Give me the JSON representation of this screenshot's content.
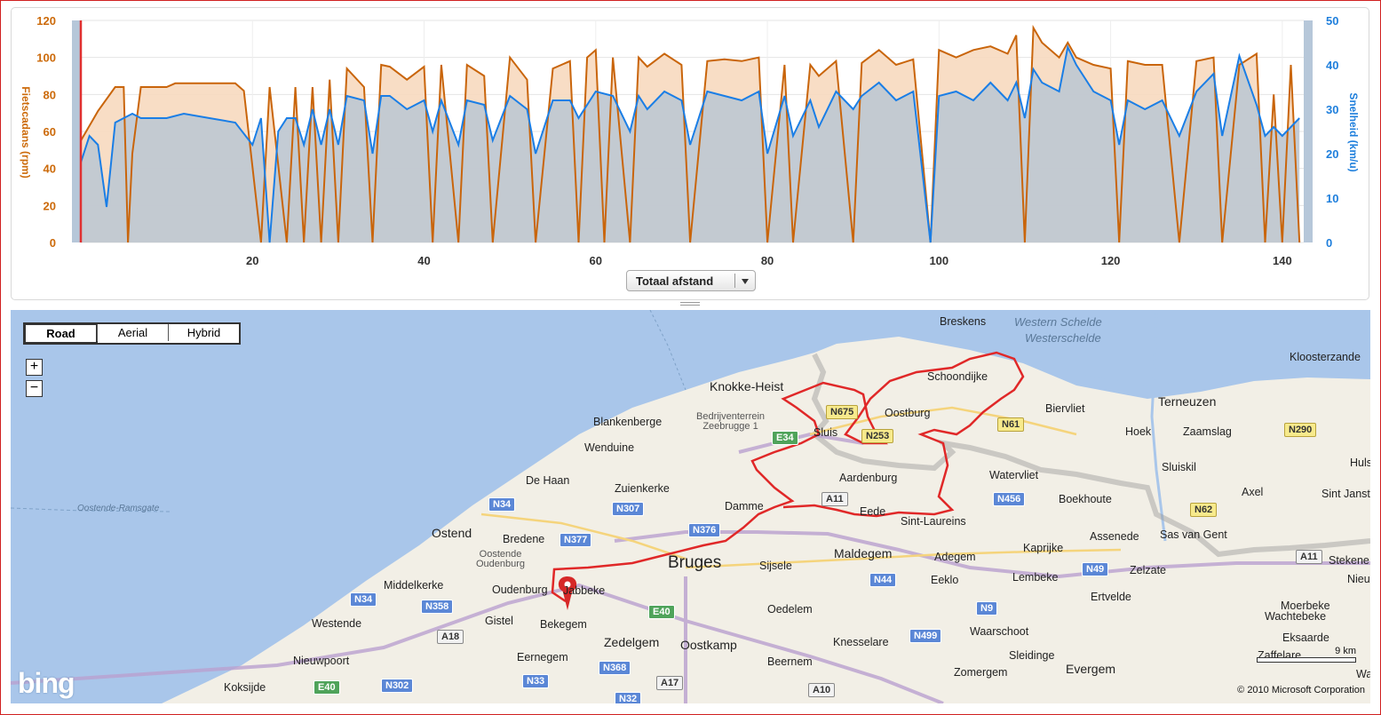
{
  "chart": {
    "left_axis_title": "Fietscadans (rpm)",
    "right_axis_title": "Snelheid (km/u)",
    "left_ticks": [
      "0",
      "20",
      "40",
      "60",
      "80",
      "100",
      "120"
    ],
    "right_ticks": [
      "0",
      "10",
      "20",
      "30",
      "40",
      "50"
    ],
    "x_ticks": [
      "20",
      "40",
      "60",
      "80",
      "100",
      "120",
      "140"
    ],
    "xaxis_select_label": "Totaal afstand",
    "colors": {
      "cadence": "#c9650b",
      "cadence_fill": "#f7d9bf",
      "speed": "#1a7ee6",
      "speed_fill": "#c0c8d2",
      "marker": "#e03030",
      "axis_band": "#b6c7d9"
    }
  },
  "chart_data": {
    "type": "line",
    "xlabel": "Totaal afstand",
    "xlim": [
      0,
      142.5
    ],
    "ylim_left": [
      0,
      120
    ],
    "ylim_right": [
      0,
      50
    ],
    "series": [
      {
        "name": "Fietscadans (rpm)",
        "axis": "left",
        "x": [
          0,
          2,
          4,
          5,
          5.5,
          6,
          7,
          10,
          11,
          15,
          18,
          19,
          21,
          22,
          24,
          25,
          26,
          27,
          28,
          29,
          30,
          31,
          33,
          34,
          35,
          36,
          38,
          40,
          41,
          42,
          44,
          45,
          47,
          48,
          50,
          52,
          53,
          55,
          57,
          58,
          59,
          60,
          61,
          62,
          64,
          65,
          66,
          68,
          70,
          71,
          73,
          75,
          77,
          79,
          80,
          82,
          83,
          85,
          86,
          88,
          90,
          91,
          93,
          95,
          97,
          99,
          100,
          102,
          104,
          106,
          108,
          109,
          110,
          111,
          112,
          114,
          115,
          116,
          118,
          120,
          121,
          122,
          124,
          126,
          128,
          130,
          132,
          133,
          135,
          137,
          138,
          139,
          140,
          141,
          142
        ],
        "y": [
          55,
          71,
          84,
          84,
          0,
          48,
          84,
          84,
          86,
          86,
          86,
          82,
          0,
          84,
          0,
          84,
          0,
          84,
          0,
          88,
          0,
          94,
          84,
          0,
          96,
          95,
          88,
          95,
          0,
          96,
          0,
          96,
          90,
          0,
          100,
          88,
          0,
          94,
          98,
          0,
          100,
          104,
          0,
          100,
          0,
          100,
          95,
          102,
          96,
          0,
          98,
          99,
          98,
          100,
          0,
          96,
          0,
          96,
          90,
          98,
          0,
          97,
          104,
          96,
          99,
          0,
          104,
          100,
          104,
          106,
          102,
          112,
          0,
          116,
          108,
          100,
          108,
          100,
          96,
          94,
          0,
          98,
          96,
          96,
          0,
          98,
          100,
          0,
          96,
          102,
          0,
          80,
          0,
          96,
          0
        ]
      },
      {
        "name": "Snelheid (km/u)",
        "axis": "right",
        "x": [
          0,
          1,
          2,
          3,
          4,
          5,
          6,
          7,
          10,
          12,
          15,
          18,
          20,
          21,
          22,
          23,
          24,
          25,
          26,
          27,
          28,
          29,
          30,
          31,
          33,
          34,
          35,
          36,
          38,
          40,
          41,
          42,
          44,
          45,
          47,
          48,
          50,
          52,
          53,
          55,
          57,
          58,
          60,
          62,
          64,
          65,
          66,
          68,
          70,
          71,
          73,
          75,
          77,
          79,
          80,
          82,
          83,
          85,
          86,
          88,
          90,
          91,
          93,
          95,
          97,
          99,
          100,
          102,
          104,
          106,
          108,
          109,
          110,
          111,
          112,
          114,
          115,
          116,
          118,
          120,
          121,
          122,
          124,
          126,
          128,
          130,
          132,
          133,
          135,
          137,
          138,
          139,
          140,
          141,
          142
        ],
        "y": [
          18,
          24,
          22,
          8,
          27,
          28,
          29,
          28,
          28,
          29,
          28,
          27,
          22,
          28,
          0,
          25,
          28,
          28,
          22,
          30,
          22,
          30,
          22,
          33,
          32,
          20,
          33,
          33,
          30,
          32,
          25,
          32,
          22,
          32,
          31,
          23,
          33,
          30,
          20,
          32,
          32,
          28,
          34,
          33,
          25,
          33,
          30,
          34,
          32,
          22,
          34,
          33,
          32,
          34,
          20,
          33,
          24,
          32,
          26,
          34,
          30,
          33,
          36,
          32,
          34,
          0,
          33,
          34,
          32,
          36,
          32,
          36,
          28,
          39,
          36,
          34,
          44,
          40,
          34,
          32,
          22,
          32,
          30,
          32,
          24,
          34,
          38,
          24,
          42,
          31,
          24,
          26,
          24,
          26,
          28
        ]
      }
    ]
  },
  "map": {
    "tabs": [
      {
        "label": "Road",
        "active": true
      },
      {
        "label": "Aerial",
        "active": false
      },
      {
        "label": "Hybrid",
        "active": false
      }
    ],
    "zoom_in": "+",
    "zoom_out": "−",
    "places": [
      {
        "id": "breskens",
        "label": "Breskens",
        "size": "normal"
      },
      {
        "id": "schoondijke",
        "label": "Schoondijke",
        "size": "normal"
      },
      {
        "id": "knokke",
        "label": "Knokke-Heist",
        "size": "mid"
      },
      {
        "id": "oostburg",
        "label": "Oostburg",
        "size": "normal"
      },
      {
        "id": "biervliet",
        "label": "Biervliet",
        "size": "normal"
      },
      {
        "id": "terneuzen",
        "label": "Terneuzen",
        "size": "mid"
      },
      {
        "id": "kloosterzande",
        "label": "Kloosterzande",
        "size": "normal"
      },
      {
        "id": "blankenberge",
        "label": "Blankenberge",
        "size": "normal"
      },
      {
        "id": "wenduine",
        "label": "Wenduine",
        "size": "normal"
      },
      {
        "id": "sluis",
        "label": "Sluis",
        "size": "normal"
      },
      {
        "id": "hoek",
        "label": "Hoek",
        "size": "normal"
      },
      {
        "id": "zaamslag",
        "label": "Zaamslag",
        "size": "normal"
      },
      {
        "id": "hulst",
        "label": "Huls",
        "size": "normal"
      },
      {
        "id": "dehaan",
        "label": "De Haan",
        "size": "normal"
      },
      {
        "id": "zuienkerke",
        "label": "Zuienkerke",
        "size": "normal"
      },
      {
        "id": "aardenburg",
        "label": "Aardenburg",
        "size": "normal"
      },
      {
        "id": "watervliet",
        "label": "Watervliet",
        "size": "normal"
      },
      {
        "id": "sluiskil",
        "label": "Sluiskil",
        "size": "normal"
      },
      {
        "id": "axel",
        "label": "Axel",
        "size": "normal"
      },
      {
        "id": "sintjansteen",
        "label": "Sint Janst",
        "size": "normal"
      },
      {
        "id": "damme",
        "label": "Damme",
        "size": "normal"
      },
      {
        "id": "eede",
        "label": "Eede",
        "size": "normal"
      },
      {
        "id": "boekhoute",
        "label": "Boekhoute",
        "size": "normal"
      },
      {
        "id": "sintlaureins",
        "label": "Sint-Laureins",
        "size": "normal"
      },
      {
        "id": "ostend",
        "label": "Ostend",
        "size": "mid"
      },
      {
        "id": "bredene",
        "label": "Bredene",
        "size": "normal"
      },
      {
        "id": "kaprijke",
        "label": "Kaprijke",
        "size": "normal"
      },
      {
        "id": "assenede",
        "label": "Assenede",
        "size": "normal"
      },
      {
        "id": "sasvangent",
        "label": "Sas van Gent",
        "size": "normal"
      },
      {
        "id": "bruges",
        "label": "Bruges",
        "size": "big"
      },
      {
        "id": "sijsele",
        "label": "Sijsele",
        "size": "normal"
      },
      {
        "id": "maldegem",
        "label": "Maldegem",
        "size": "mid"
      },
      {
        "id": "adegem",
        "label": "Adegem",
        "size": "normal"
      },
      {
        "id": "zelzate",
        "label": "Zelzate",
        "size": "normal"
      },
      {
        "id": "stekene",
        "label": "Stekene",
        "size": "normal"
      },
      {
        "id": "middelkerke",
        "label": "Middelkerke",
        "size": "normal"
      },
      {
        "id": "oudenburg",
        "label": "Oudenburg",
        "size": "normal"
      },
      {
        "id": "jabbeke",
        "label": "Jabbeke",
        "size": "normal"
      },
      {
        "id": "eeklo",
        "label": "Eeklo",
        "size": "normal"
      },
      {
        "id": "lembeke",
        "label": "Lembeke",
        "size": "normal"
      },
      {
        "id": "nieuw",
        "label": "Nieu",
        "size": "normal"
      },
      {
        "id": "ertvelde",
        "label": "Ertvelde",
        "size": "normal"
      },
      {
        "id": "moerbeke",
        "label": "Moerbeke",
        "size": "normal"
      },
      {
        "id": "oedelem",
        "label": "Oedelem",
        "size": "normal"
      },
      {
        "id": "westende",
        "label": "Westende",
        "size": "normal"
      },
      {
        "id": "gistel",
        "label": "Gistel",
        "size": "normal"
      },
      {
        "id": "bekegem",
        "label": "Bekegem",
        "size": "normal"
      },
      {
        "id": "wachtebeke",
        "label": "Wachtebeke",
        "size": "normal"
      },
      {
        "id": "zedelgem",
        "label": "Zedelgem",
        "size": "mid"
      },
      {
        "id": "oostkamp",
        "label": "Oostkamp",
        "size": "mid"
      },
      {
        "id": "knesselare",
        "label": "Knesselare",
        "size": "normal"
      },
      {
        "id": "waarschoot",
        "label": "Waarschoot",
        "size": "normal"
      },
      {
        "id": "eksaarde",
        "label": "Eksaarde",
        "size": "normal"
      },
      {
        "id": "nieuwpoort",
        "label": "Nieuwpoort",
        "size": "normal"
      },
      {
        "id": "eernegem",
        "label": "Eernegem",
        "size": "normal"
      },
      {
        "id": "sleidinge",
        "label": "Sleidinge",
        "size": "normal"
      },
      {
        "id": "zaffelare",
        "label": "Zaffelare",
        "size": "normal"
      },
      {
        "id": "beernem",
        "label": "Beernem",
        "size": "normal"
      },
      {
        "id": "zomergem",
        "label": "Zomergem",
        "size": "normal"
      },
      {
        "id": "evergem",
        "label": "Evergem",
        "size": "mid"
      },
      {
        "id": "koksijde",
        "label": "Koksijde",
        "size": "normal"
      },
      {
        "id": "waas",
        "label": "Waas",
        "size": "normal"
      }
    ],
    "small_labels": [
      {
        "id": "bedrijventerrein",
        "label": "Bedrijventerrein\nZeebrugge 1"
      },
      {
        "id": "oostendeoudenburg",
        "label": "Oostende\nOudenburg"
      }
    ],
    "water_labels": [
      {
        "id": "westernschelde",
        "label": "Western Schelde"
      },
      {
        "id": "westerschelde",
        "label": "Westerschelde"
      },
      {
        "id": "oostenderamsgate",
        "label": "Oostende-Ramsgate"
      }
    ],
    "shields": [
      {
        "id": "n675",
        "label": "N675",
        "type": "yellow"
      },
      {
        "id": "n253",
        "label": "N253",
        "type": "yellow"
      },
      {
        "id": "n61",
        "label": "N61",
        "type": "yellow"
      },
      {
        "id": "n290",
        "label": "N290",
        "type": "yellow"
      },
      {
        "id": "n62",
        "label": "N62",
        "type": "yellow"
      },
      {
        "id": "e34",
        "label": "E34",
        "type": "green"
      },
      {
        "id": "a11a",
        "label": "A11",
        "type": "white"
      },
      {
        "id": "a11b",
        "label": "A11",
        "type": "white"
      },
      {
        "id": "n34a",
        "label": "N34",
        "type": "blue"
      },
      {
        "id": "n307",
        "label": "N307",
        "type": "blue"
      },
      {
        "id": "n456",
        "label": "N456",
        "type": "blue"
      },
      {
        "id": "n376",
        "label": "N376",
        "type": "blue"
      },
      {
        "id": "n377",
        "label": "N377",
        "type": "blue"
      },
      {
        "id": "n49",
        "label": "N49",
        "type": "blue"
      },
      {
        "id": "n44",
        "label": "N44",
        "type": "blue"
      },
      {
        "id": "n34b",
        "label": "N34",
        "type": "blue"
      },
      {
        "id": "n358",
        "label": "N358",
        "type": "blue"
      },
      {
        "id": "e40a",
        "label": "E40",
        "type": "green"
      },
      {
        "id": "n9",
        "label": "N9",
        "type": "blue"
      },
      {
        "id": "a18",
        "label": "A18",
        "type": "white"
      },
      {
        "id": "n499",
        "label": "N499",
        "type": "blue"
      },
      {
        "id": "n368",
        "label": "N368",
        "type": "blue"
      },
      {
        "id": "n33",
        "label": "N33",
        "type": "blue"
      },
      {
        "id": "a17",
        "label": "A17",
        "type": "white"
      },
      {
        "id": "e40b",
        "label": "E40",
        "type": "green"
      },
      {
        "id": "n302",
        "label": "N302",
        "type": "blue"
      },
      {
        "id": "a10",
        "label": "A10",
        "type": "white"
      },
      {
        "id": "n32",
        "label": "N32",
        "type": "blue"
      }
    ],
    "bing_logo": "bing",
    "copyright": "© 2010 Microsoft Corporation",
    "scale_label": "9 km"
  }
}
